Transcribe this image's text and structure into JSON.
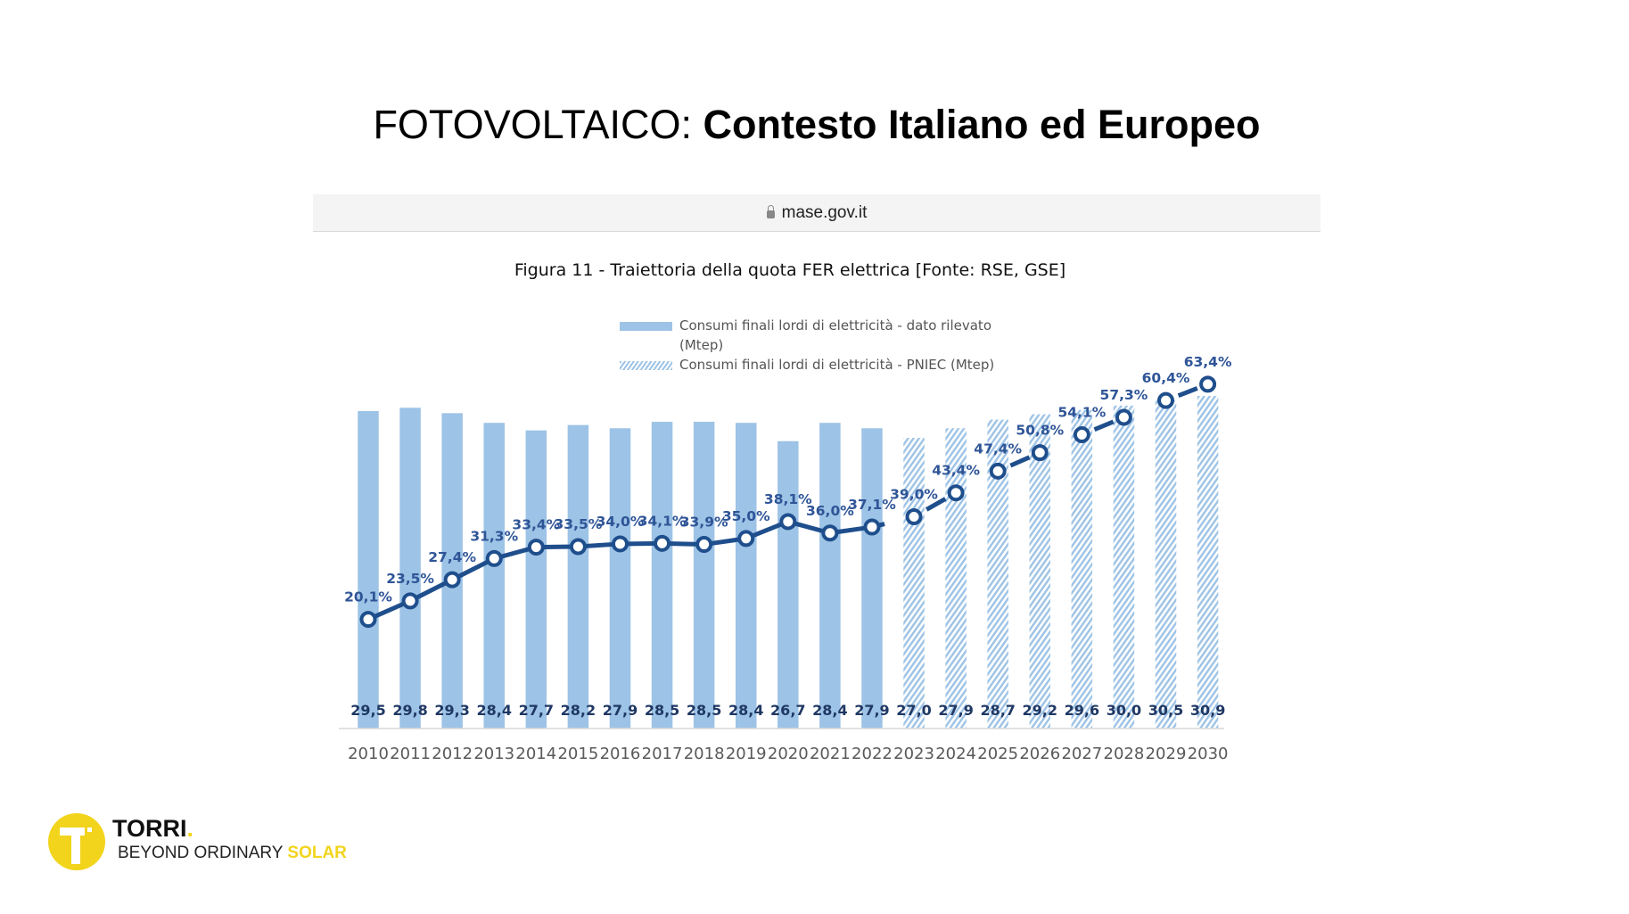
{
  "slide": {
    "title_regular": "FOTOVOLTAICO:",
    "title_bold": "Contesto Italiano ed Europeo"
  },
  "browser": {
    "url": "mase.gov.it",
    "lock_icon": "lock-icon"
  },
  "logo": {
    "name": "TORRI",
    "dot": ".",
    "tagline": "BEYOND ORDINARY",
    "tagline_accent": "SOLAR",
    "color": "#f2d41c"
  },
  "chart_data": {
    "type": "bar",
    "title": "Figura 11 - Traiettoria della quota FER elettrica [Fonte: RSE, GSE]",
    "legend": {
      "placement": "top-center",
      "entries": [
        {
          "label": "Consumi finali lordi di elettricità - dato rilevato",
          "label_line2": "(Mtep)",
          "style": "solid"
        },
        {
          "label": "Consumi finali lordi di elettricità - PNIEC (Mtep)",
          "style": "hatched"
        }
      ]
    },
    "categories": [
      "2010",
      "2011",
      "2012",
      "2013",
      "2014",
      "2015",
      "2016",
      "2017",
      "2018",
      "2019",
      "2020",
      "2021",
      "2022",
      "2023",
      "2024",
      "2025",
      "2026",
      "2027",
      "2028",
      "2029",
      "2030"
    ],
    "series": [
      {
        "name": "Consumi finali lordi di elettricità (Mtep)",
        "type": "bar",
        "values": [
          29.5,
          29.8,
          29.3,
          28.4,
          27.7,
          28.2,
          27.9,
          28.5,
          28.5,
          28.4,
          26.7,
          28.4,
          27.9,
          27.0,
          27.9,
          28.7,
          29.2,
          29.6,
          30.0,
          30.5,
          30.9
        ],
        "labels": [
          "29,5",
          "29,8",
          "29,3",
          "28,4",
          "27,7",
          "28,2",
          "27,9",
          "28,5",
          "28,5",
          "28,4",
          "26,7",
          "28,4",
          "27,9",
          "27,0",
          "27,9",
          "28,7",
          "29,2",
          "29,6",
          "30,0",
          "30,5",
          "30,9"
        ],
        "observed_until": "2022"
      },
      {
        "name": "Quota FER elettrica (%)",
        "type": "line",
        "values": [
          20.1,
          23.5,
          27.4,
          31.3,
          33.4,
          33.5,
          34.0,
          34.1,
          33.9,
          35.0,
          38.1,
          36.0,
          37.1,
          39.0,
          43.4,
          47.4,
          50.8,
          54.1,
          57.3,
          60.4,
          63.4
        ],
        "labels": [
          "20,1%",
          "23,5%",
          "27,4%",
          "31,3%",
          "33,4%",
          "33,5%",
          "34,0%",
          "34,1%",
          "33,9%",
          "35,0%",
          "38,1%",
          "36,0%",
          "37,1%",
          "39,0%",
          "43,4%",
          "47,4%",
          "50,8%",
          "54,1%",
          "57,3%",
          "60,4%",
          "63,4%"
        ]
      }
    ],
    "colors": {
      "bar": "#9dc3e6",
      "line": "#1f4e8c",
      "label": "#1f3864",
      "axis_text": "#595959"
    },
    "xlabel": "",
    "ylabel": "",
    "grid": false
  }
}
